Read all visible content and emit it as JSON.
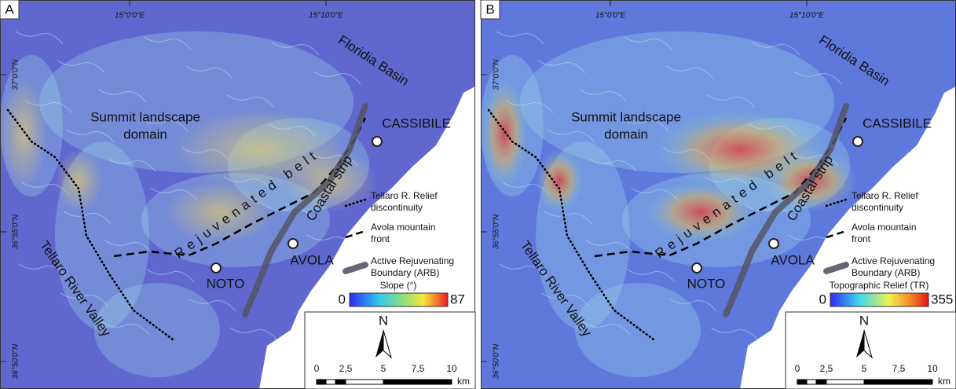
{
  "panels": [
    {
      "label": "A",
      "lon_ticks": [
        "15°0'0\"E",
        "15°10'0\"E"
      ],
      "lat_ticks": [
        "37°0'0\"N",
        "36°55'0\"N",
        "36°50'0\"N"
      ],
      "summit": [
        "Summit landscape",
        "domain"
      ],
      "belt": "Rejuvenated belt",
      "coastal": "Coastal strip",
      "basin": "Floridia Basin",
      "towns": [
        "CASSIBILE",
        "AVOLA",
        "NOTO"
      ],
      "valley": "Tellaro River Valley",
      "legend": [
        [
          "Tellaro R. Relief",
          "discontinuity"
        ],
        [
          "Avola mountain",
          "front"
        ],
        [
          "Active Rejuvenating",
          "Boundary (ARB)"
        ]
      ],
      "colorbar": {
        "title": "Slope (°)",
        "min": "0",
        "max": "87"
      },
      "north": "N",
      "scale": [
        "0",
        "2,5",
        "5",
        "7,5",
        "10"
      ],
      "scale_unit": "km"
    },
    {
      "label": "B",
      "lon_ticks": [
        "15°0'0\"E",
        "15°10'0\"E"
      ],
      "lat_ticks": [
        "37°0'0\"N",
        "36°55'0\"N",
        "36°50'0\"N"
      ],
      "summit": [
        "Summit landscape",
        "domain"
      ],
      "belt": "Rejuvenated belt",
      "coastal": "Coastal strip",
      "basin": "Floridia Basin",
      "towns": [
        "CASSIBILE",
        "AVOLA",
        "NOTO"
      ],
      "valley": "Tellaro River Valley",
      "legend": [
        [
          "Tellaro R. Relief",
          "discontinuity"
        ],
        [
          "Avola mountain",
          "front"
        ],
        [
          "Active Rejuvenating",
          "Boundary (ARB)"
        ]
      ],
      "colorbar": {
        "title": "Topographic Relief (TR)",
        "min": "0",
        "max": "355"
      },
      "north": "N",
      "scale": [
        "0",
        "2,5",
        "5",
        "7,5",
        "10"
      ],
      "scale_unit": "km"
    }
  ]
}
